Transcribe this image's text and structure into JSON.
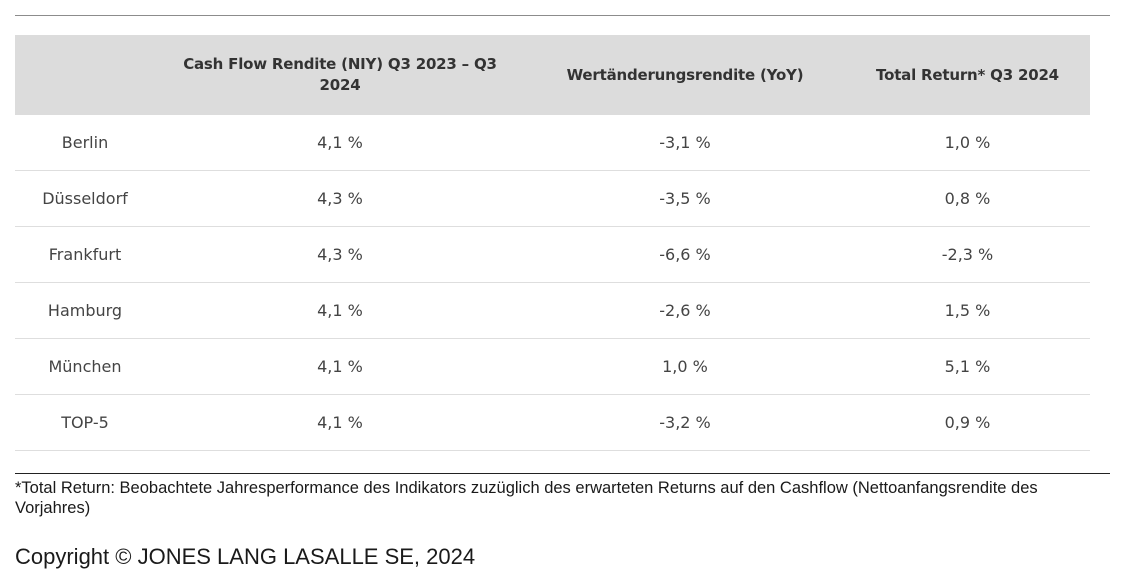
{
  "table": {
    "headers": [
      "",
      "Cash Flow Rendite (NIY) Q3 2023 – Q3 2024",
      "Wertänderungsrendite (YoY)",
      "Total Return* Q3 2024"
    ],
    "rows": [
      [
        "Berlin",
        "4,1 %",
        "-3,1 %",
        "1,0 %"
      ],
      [
        "Düsseldorf",
        "4,3 %",
        "-3,5 %",
        "0,8 %"
      ],
      [
        "Frankfurt",
        "4,3 %",
        "-6,6 %",
        "-2,3 %"
      ],
      [
        "Hamburg",
        "4,1 %",
        "-2,6 %",
        "1,5 %"
      ],
      [
        "München",
        "4,1 %",
        "1,0 %",
        "5,1 %"
      ],
      [
        "TOP-5",
        "4,1 %",
        "-3,2 %",
        "0,9 %"
      ]
    ]
  },
  "footnote": "*Total Return: Beobachtete Jahresperformance des Indikators zuzüglich des erwarteten Returns auf den Cashflow (Nettoanfangsrendite des Vorjahres)",
  "copyright": "Copyright © JONES LANG LASALLE SE, 2024",
  "colors": {
    "header_background": "#dcdcdc",
    "row_divider": "#dedede",
    "text": "#444444"
  }
}
